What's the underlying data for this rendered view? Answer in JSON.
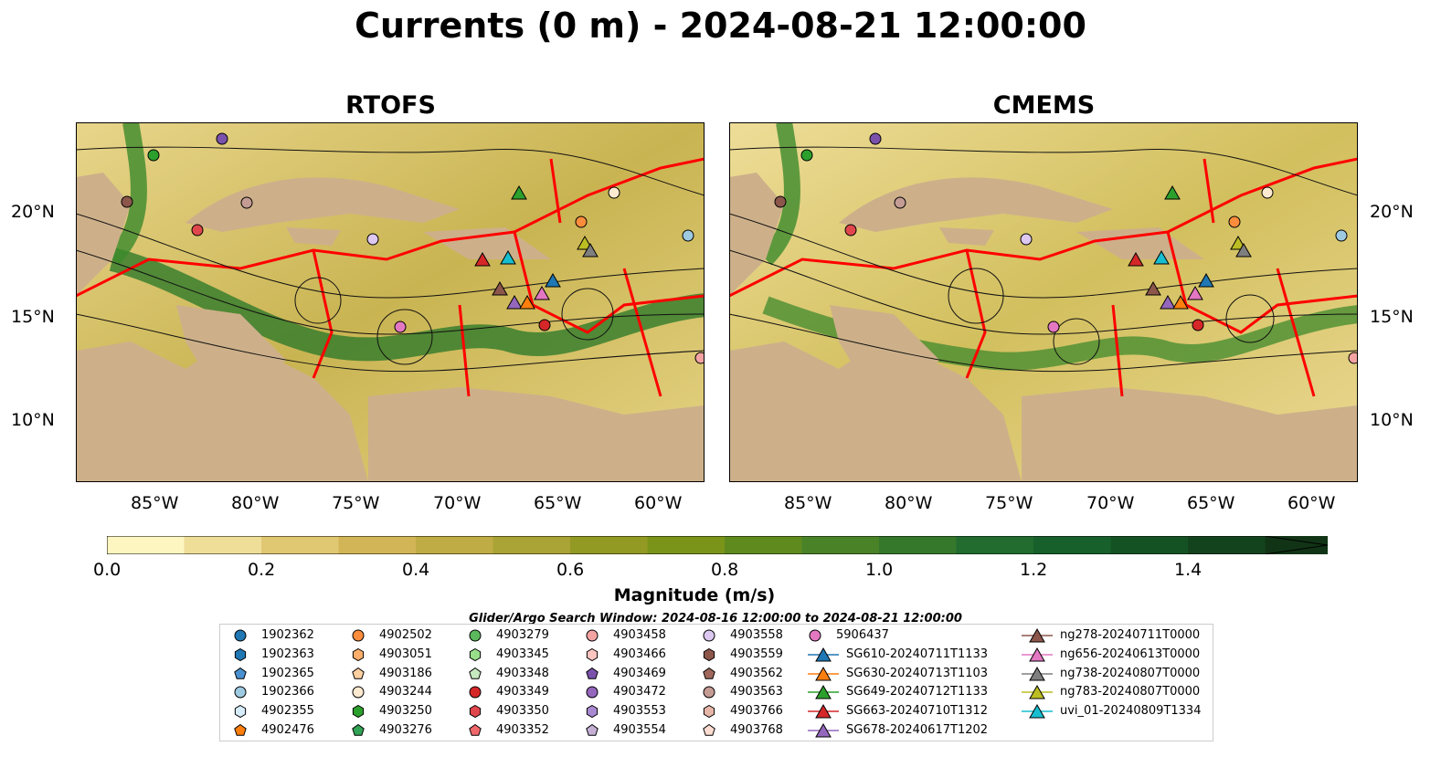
{
  "title": "Currents (0 m) - 2024-08-21 12:00:00",
  "panels": [
    {
      "title": "RTOFS"
    },
    {
      "title": "CMEMS"
    }
  ],
  "axes": {
    "lat_ticks": [
      "20°N",
      "15°N",
      "10°N"
    ],
    "lon_ticks": [
      "85°W",
      "80°W",
      "75°W",
      "70°W",
      "65°W",
      "60°W"
    ]
  },
  "colorbar": {
    "label": "Magnitude (m/s)",
    "ticks": [
      "0.0",
      "0.2",
      "0.4",
      "0.6",
      "0.8",
      "1.0",
      "1.2",
      "1.4"
    ],
    "colors": [
      "#fdf6c0",
      "#efde98",
      "#e0c772",
      "#d2b556",
      "#c0ac45",
      "#aaa335",
      "#939a24",
      "#7a941a",
      "#5f8a1e",
      "#4a8228",
      "#35782c",
      "#216c2e",
      "#17602b",
      "#145223",
      "#12431c",
      "#113416"
    ]
  },
  "legend": {
    "title": "Glider/Argo Search Window: 2024-08-16 12:00:00 to 2024-08-21 12:00:00",
    "columns": [
      [
        {
          "label": "1902362",
          "shape": "circle",
          "color": "#1f77b4"
        },
        {
          "label": "1902363",
          "shape": "hexagon",
          "color": "#1f77b4"
        },
        {
          "label": "1902365",
          "shape": "pentagon",
          "color": "#4a90d0"
        },
        {
          "label": "1902366",
          "shape": "circle",
          "color": "#9ecae1"
        },
        {
          "label": "4902355",
          "shape": "hexagon",
          "color": "#d6ecfa"
        },
        {
          "label": "4902476",
          "shape": "pentagon",
          "color": "#ff7f0e"
        }
      ],
      [
        {
          "label": "4902502",
          "shape": "circle",
          "color": "#fd8d3c"
        },
        {
          "label": "4903051",
          "shape": "hexagon",
          "color": "#fdae6b"
        },
        {
          "label": "4903186",
          "shape": "pentagon",
          "color": "#fdd0a2"
        },
        {
          "label": "4903244",
          "shape": "circle",
          "color": "#feead0"
        },
        {
          "label": "4903250",
          "shape": "hexagon",
          "color": "#2ca02c"
        },
        {
          "label": "4903276",
          "shape": "pentagon",
          "color": "#31a354"
        }
      ],
      [
        {
          "label": "4903279",
          "shape": "circle",
          "color": "#5cb85c"
        },
        {
          "label": "4903345",
          "shape": "hexagon",
          "color": "#98df8a"
        },
        {
          "label": "4903348",
          "shape": "pentagon",
          "color": "#c7e9c0"
        },
        {
          "label": "4903349",
          "shape": "circle",
          "color": "#d62728"
        },
        {
          "label": "4903350",
          "shape": "hexagon",
          "color": "#e0474c"
        },
        {
          "label": "4903352",
          "shape": "pentagon",
          "color": "#f0686a"
        }
      ],
      [
        {
          "label": "4903458",
          "shape": "circle",
          "color": "#f4a3a3"
        },
        {
          "label": "4903466",
          "shape": "hexagon",
          "color": "#fcc5c0"
        },
        {
          "label": "4903469",
          "shape": "pentagon",
          "color": "#7b52ab"
        },
        {
          "label": "4903472",
          "shape": "circle",
          "color": "#9467bd"
        },
        {
          "label": "4903553",
          "shape": "hexagon",
          "color": "#a889d0"
        },
        {
          "label": "4903554",
          "shape": "pentagon",
          "color": "#c5b0d5"
        }
      ],
      [
        {
          "label": "4903558",
          "shape": "circle",
          "color": "#dcc8f0"
        },
        {
          "label": "4903559",
          "shape": "hexagon",
          "color": "#8c564b"
        },
        {
          "label": "4903562",
          "shape": "pentagon",
          "color": "#a0685c"
        },
        {
          "label": "4903563",
          "shape": "circle",
          "color": "#c49c94"
        },
        {
          "label": "4903766",
          "shape": "hexagon",
          "color": "#e6b6a8"
        },
        {
          "label": "4903768",
          "shape": "pentagon",
          "color": "#fcdcd0"
        }
      ],
      [
        {
          "label": "5906437",
          "shape": "circle",
          "color": "#e377c2"
        },
        {
          "label": "SG610-20240711T1133",
          "shape": "triangle",
          "color": "#1f77b4"
        },
        {
          "label": "SG630-20240713T1103",
          "shape": "triangle",
          "color": "#ff7f0e"
        },
        {
          "label": "SG649-20240712T1133",
          "shape": "triangle",
          "color": "#2ca02c"
        },
        {
          "label": "SG663-20240710T1312",
          "shape": "triangle",
          "color": "#d62728"
        },
        {
          "label": "SG678-20240617T1202",
          "shape": "triangle",
          "color": "#9467bd"
        }
      ],
      [
        {
          "label": "ng278-20240711T0000",
          "shape": "triangle",
          "color": "#8c564b"
        },
        {
          "label": "ng656-20240613T0000",
          "shape": "triangle",
          "color": "#e377c2"
        },
        {
          "label": "ng738-20240807T0000",
          "shape": "triangle",
          "color": "#7f7f7f"
        },
        {
          "label": "ng783-20240807T0000",
          "shape": "triangle",
          "color": "#bcbd22"
        },
        {
          "label": "uvi_01-20240809T1334",
          "shape": "triangle",
          "color": "#17becf"
        }
      ]
    ]
  }
}
